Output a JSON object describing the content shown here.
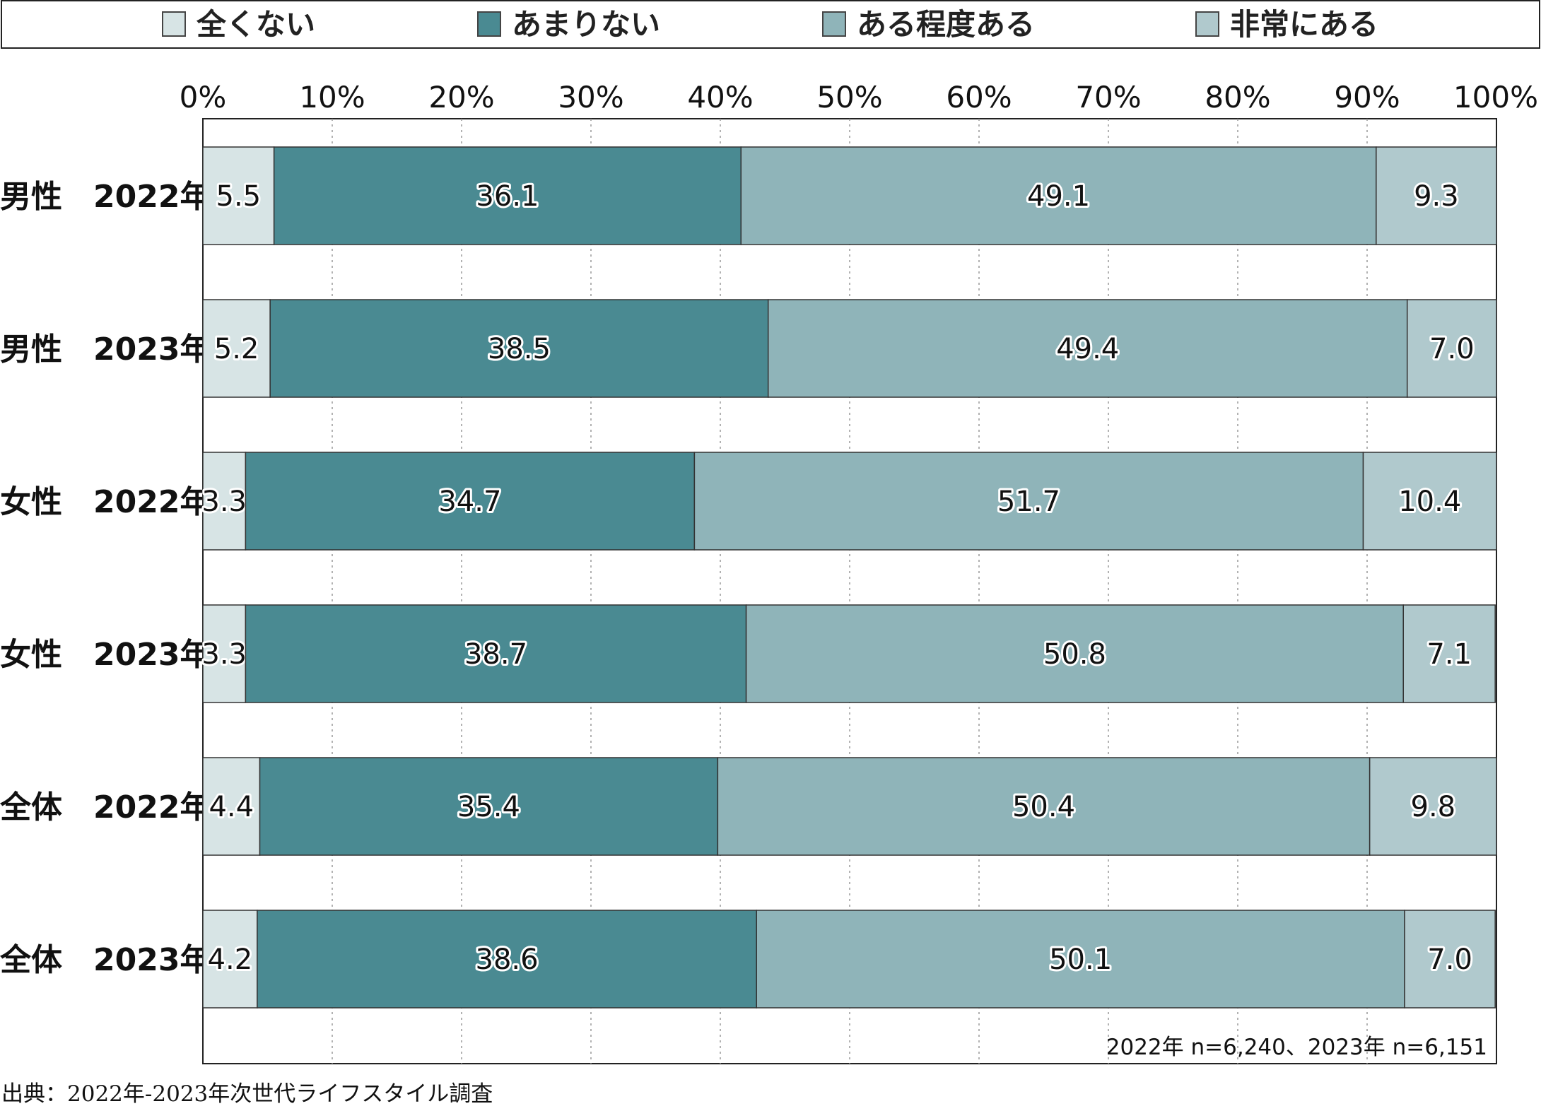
{
  "chart_data": {
    "type": "bar",
    "orientation": "horizontal",
    "stacked": true,
    "percent_stacked": true,
    "categories": [
      "男性　2022年",
      "男性　2023年",
      "女性　2022年",
      "女性　2023年",
      "全体　2022年",
      "全体　2023年"
    ],
    "series": [
      {
        "name": "全くない",
        "color": "#d7e4e5",
        "values": [
          5.5,
          5.2,
          3.3,
          3.3,
          4.4,
          4.2
        ]
      },
      {
        "name": "あまりない",
        "color": "#4a8a92",
        "values": [
          36.1,
          38.5,
          34.7,
          38.7,
          35.4,
          38.6
        ]
      },
      {
        "name": "ある程度ある",
        "color": "#8fb4b9",
        "values": [
          49.1,
          49.4,
          51.7,
          50.8,
          50.4,
          50.1
        ]
      },
      {
        "name": "非常にある",
        "color": "#b0c9cd",
        "values": [
          9.3,
          7.0,
          10.4,
          7.1,
          9.8,
          7.0
        ]
      }
    ],
    "value_labels": [
      [
        "5.5",
        "5.2",
        "3.3",
        "3.3",
        "4.4",
        "4.2"
      ],
      [
        "36.1",
        "38.5",
        "34.7",
        "38.7",
        "35.4",
        "38.6"
      ],
      [
        "49.1",
        "49.4",
        "51.7",
        "50.8",
        "50.4",
        "50.1"
      ],
      [
        "9.3",
        "7.0",
        "10.4",
        "7.1",
        "9.8",
        "7.0"
      ]
    ],
    "x_ticks": [
      "0%",
      "10%",
      "20%",
      "30%",
      "40%",
      "50%",
      "60%",
      "70%",
      "80%",
      "90%",
      "100%"
    ],
    "xlim": [
      0,
      100
    ],
    "x_axis_position": "top",
    "grid": "vertical dotted",
    "legend_position": "top",
    "note": "2022年 n=6,240、2023年 n=6,151"
  },
  "source": "出典：2022年-2023年次世代ライフスタイル調査"
}
